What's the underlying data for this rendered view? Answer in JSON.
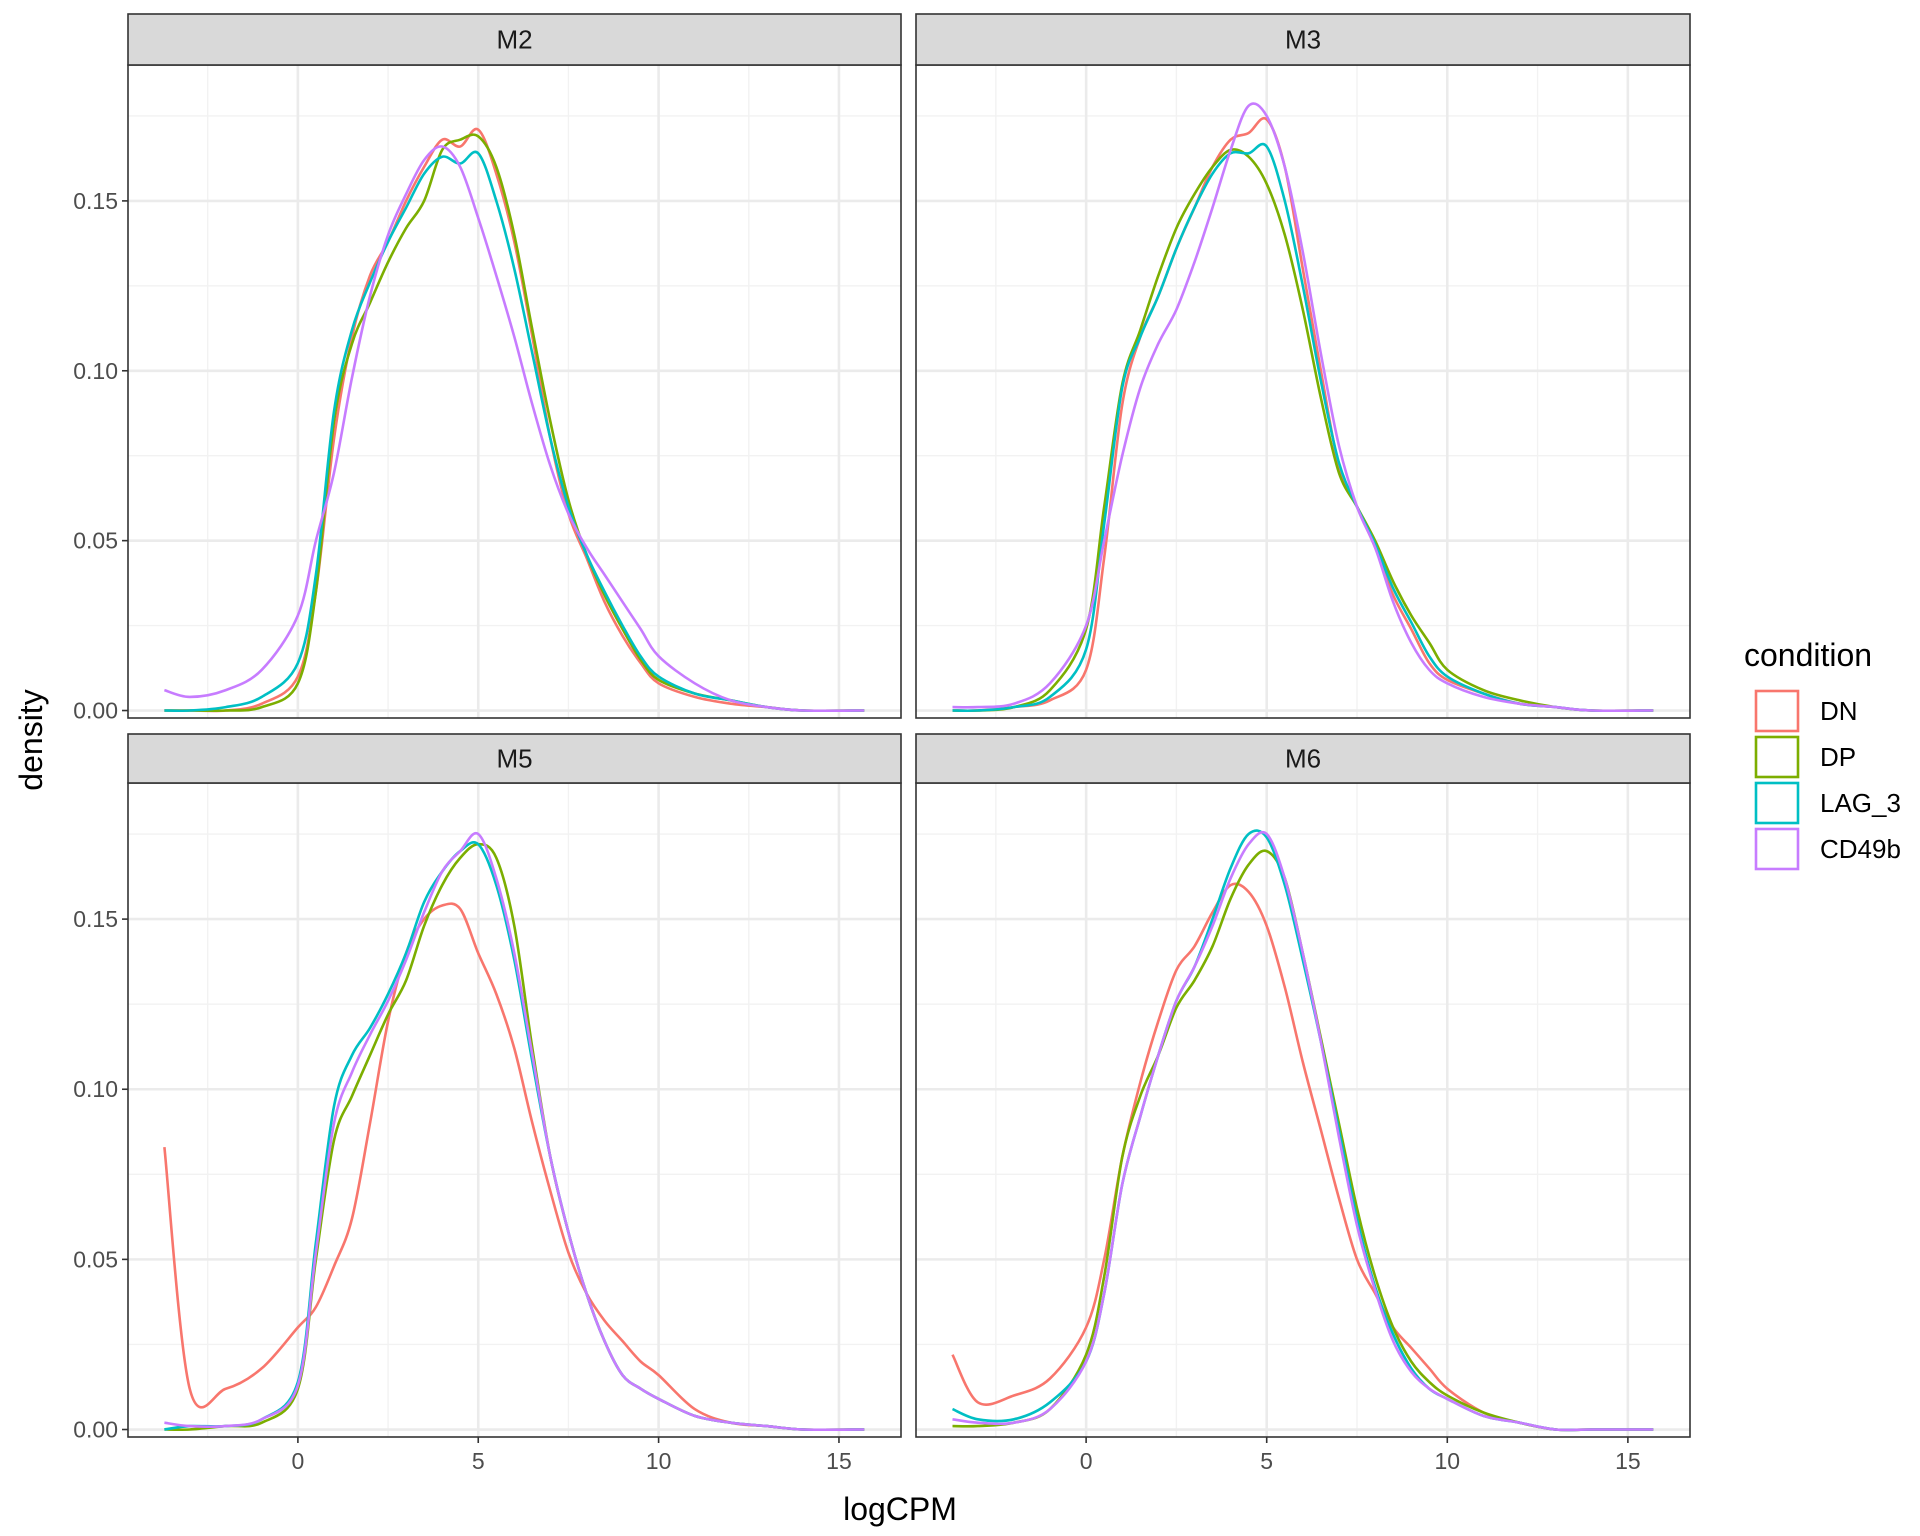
{
  "chart_data": {
    "type": "line",
    "subtype": "density (faceted)",
    "title": "",
    "xlabel": "logCPM",
    "ylabel": "density",
    "xlim": [
      -4.71,
      16.72
    ],
    "ylim": [
      -0.0022,
      0.19
    ],
    "x_ticks": [
      0,
      5,
      10,
      15
    ],
    "x_tick_labels": [
      "0",
      "5",
      "10",
      "15"
    ],
    "y_ticks": [
      0.0,
      0.05,
      0.1,
      0.15
    ],
    "y_tick_labels": [
      "0.00",
      "0.05",
      "0.10",
      "0.15"
    ],
    "grid": true,
    "legend": {
      "title": "condition",
      "position": "right",
      "entries": [
        {
          "label": "DN",
          "color": "#F8766D"
        },
        {
          "label": "DP",
          "color": "#7CAE00"
        },
        {
          "label": "LAG_3",
          "color": "#00BFC4"
        },
        {
          "label": "CD49b",
          "color": "#C77CFF"
        }
      ]
    },
    "x": [
      -3.7,
      -3,
      -2,
      -1,
      0,
      0.5,
      1,
      1.5,
      2,
      2.5,
      3,
      3.5,
      4,
      4.5,
      5,
      5.5,
      6,
      6.5,
      7,
      7.5,
      8,
      8.5,
      9,
      9.5,
      10,
      11,
      12,
      13,
      14,
      15.7
    ],
    "panels": [
      {
        "facet": "M2",
        "series": [
          {
            "name": "DN",
            "values": [
              0.0,
              0.0,
              0.0,
              0.002,
              0.01,
              0.035,
              0.08,
              0.11,
              0.128,
              0.138,
              0.15,
              0.16,
              0.168,
              0.166,
              0.171,
              0.158,
              0.138,
              0.11,
              0.08,
              0.058,
              0.045,
              0.032,
              0.022,
              0.014,
              0.008,
              0.004,
              0.002,
              0.001,
              0.0,
              0.0
            ]
          },
          {
            "name": "DP",
            "values": [
              0.0,
              0.0,
              0.0,
              0.001,
              0.008,
              0.035,
              0.085,
              0.108,
              0.12,
              0.132,
              0.142,
              0.15,
              0.165,
              0.168,
              0.169,
              0.16,
              0.14,
              0.112,
              0.085,
              0.062,
              0.046,
              0.034,
              0.024,
              0.015,
              0.009,
              0.005,
              0.003,
              0.001,
              0.0,
              0.0
            ]
          },
          {
            "name": "LAG_3",
            "values": [
              0.0,
              0.0,
              0.001,
              0.004,
              0.014,
              0.04,
              0.088,
              0.112,
              0.126,
              0.138,
              0.148,
              0.158,
              0.163,
              0.161,
              0.164,
              0.15,
              0.13,
              0.105,
              0.08,
              0.06,
              0.046,
              0.035,
              0.025,
              0.016,
              0.01,
              0.005,
              0.003,
              0.001,
              0.0,
              0.0
            ]
          },
          {
            "name": "CD49b",
            "values": [
              0.006,
              0.004,
              0.006,
              0.012,
              0.028,
              0.05,
              0.07,
              0.098,
              0.122,
              0.14,
              0.152,
              0.162,
              0.166,
              0.16,
              0.145,
              0.128,
              0.11,
              0.09,
              0.072,
              0.058,
              0.048,
              0.04,
              0.032,
              0.024,
              0.016,
              0.008,
              0.003,
              0.001,
              0.0,
              0.0
            ]
          }
        ]
      },
      {
        "facet": "M3",
        "series": [
          {
            "name": "DN",
            "values": [
              0.0,
              0.0,
              0.001,
              0.003,
              0.012,
              0.045,
              0.09,
              0.11,
              0.122,
              0.136,
              0.148,
              0.16,
              0.168,
              0.17,
              0.174,
              0.16,
              0.13,
              0.1,
              0.072,
              0.06,
              0.048,
              0.034,
              0.024,
              0.014,
              0.009,
              0.005,
              0.002,
              0.001,
              0.0,
              0.0
            ]
          },
          {
            "name": "DP",
            "values": [
              0.0,
              0.0,
              0.001,
              0.006,
              0.024,
              0.06,
              0.096,
              0.112,
              0.128,
              0.142,
              0.152,
              0.16,
              0.165,
              0.163,
              0.155,
              0.14,
              0.118,
              0.092,
              0.07,
              0.06,
              0.05,
              0.038,
              0.028,
              0.02,
              0.012,
              0.006,
              0.003,
              0.001,
              0.0,
              0.0
            ]
          },
          {
            "name": "LAG_3",
            "values": [
              0.0,
              0.0,
              0.001,
              0.004,
              0.018,
              0.055,
              0.095,
              0.11,
              0.122,
              0.136,
              0.148,
              0.158,
              0.164,
              0.164,
              0.166,
              0.15,
              0.125,
              0.097,
              0.073,
              0.06,
              0.049,
              0.036,
              0.026,
              0.016,
              0.01,
              0.005,
              0.002,
              0.001,
              0.0,
              0.0
            ]
          },
          {
            "name": "CD49b",
            "values": [
              0.001,
              0.001,
              0.002,
              0.008,
              0.025,
              0.05,
              0.075,
              0.095,
              0.108,
              0.118,
              0.132,
              0.148,
              0.165,
              0.178,
              0.175,
              0.16,
              0.135,
              0.105,
              0.078,
              0.06,
              0.048,
              0.032,
              0.02,
              0.012,
              0.008,
              0.004,
              0.002,
              0.001,
              0.0,
              0.0
            ]
          }
        ]
      },
      {
        "facet": "M5",
        "series": [
          {
            "name": "DN",
            "values": [
              0.083,
              0.012,
              0.012,
              0.018,
              0.03,
              0.036,
              0.048,
              0.062,
              0.09,
              0.12,
              0.14,
              0.15,
              0.154,
              0.153,
              0.14,
              0.128,
              0.112,
              0.09,
              0.07,
              0.052,
              0.04,
              0.032,
              0.026,
              0.02,
              0.016,
              0.006,
              0.002,
              0.001,
              0.0,
              0.0
            ]
          },
          {
            "name": "DP",
            "values": [
              0.0,
              0.0,
              0.001,
              0.002,
              0.012,
              0.05,
              0.085,
              0.098,
              0.11,
              0.122,
              0.132,
              0.148,
              0.16,
              0.168,
              0.172,
              0.168,
              0.148,
              0.112,
              0.08,
              0.058,
              0.04,
              0.026,
              0.016,
              0.012,
              0.009,
              0.004,
              0.002,
              0.001,
              0.0,
              0.0
            ]
          },
          {
            "name": "LAG_3",
            "values": [
              0.0,
              0.001,
              0.001,
              0.003,
              0.014,
              0.055,
              0.095,
              0.11,
              0.118,
              0.128,
              0.14,
              0.155,
              0.164,
              0.17,
              0.172,
              0.16,
              0.138,
              0.108,
              0.08,
              0.058,
              0.04,
              0.026,
              0.016,
              0.012,
              0.009,
              0.004,
              0.002,
              0.001,
              0.0,
              0.0
            ]
          },
          {
            "name": "CD49b",
            "values": [
              0.002,
              0.001,
              0.001,
              0.003,
              0.013,
              0.052,
              0.09,
              0.105,
              0.116,
              0.126,
              0.138,
              0.152,
              0.164,
              0.17,
              0.175,
              0.162,
              0.14,
              0.11,
              0.08,
              0.058,
              0.04,
              0.026,
              0.016,
              0.012,
              0.009,
              0.004,
              0.002,
              0.001,
              0.0,
              0.0
            ]
          }
        ]
      },
      {
        "facet": "M6",
        "series": [
          {
            "name": "DN",
            "values": [
              0.022,
              0.008,
              0.01,
              0.015,
              0.03,
              0.05,
              0.08,
              0.102,
              0.12,
              0.135,
              0.142,
              0.152,
              0.16,
              0.158,
              0.148,
              0.13,
              0.108,
              0.088,
              0.068,
              0.05,
              0.04,
              0.03,
              0.024,
              0.018,
              0.012,
              0.005,
              0.002,
              0.0,
              0.0,
              0.0
            ]
          },
          {
            "name": "DP",
            "values": [
              0.001,
              0.001,
              0.002,
              0.006,
              0.022,
              0.045,
              0.08,
              0.098,
              0.11,
              0.124,
              0.132,
              0.142,
              0.156,
              0.166,
              0.17,
              0.162,
              0.14,
              0.115,
              0.09,
              0.065,
              0.045,
              0.03,
              0.02,
              0.014,
              0.01,
              0.005,
              0.002,
              0.0,
              0.0,
              0.0
            ]
          },
          {
            "name": "LAG_3",
            "values": [
              0.006,
              0.003,
              0.003,
              0.008,
              0.02,
              0.04,
              0.072,
              0.092,
              0.11,
              0.126,
              0.136,
              0.15,
              0.165,
              0.175,
              0.174,
              0.16,
              0.138,
              0.114,
              0.088,
              0.062,
              0.042,
              0.028,
              0.018,
              0.012,
              0.009,
              0.004,
              0.002,
              0.0,
              0.0,
              0.0
            ]
          },
          {
            "name": "CD49b",
            "values": [
              0.003,
              0.002,
              0.002,
              0.006,
              0.02,
              0.04,
              0.072,
              0.092,
              0.11,
              0.126,
              0.136,
              0.148,
              0.162,
              0.172,
              0.175,
              0.162,
              0.14,
              0.114,
              0.086,
              0.06,
              0.041,
              0.026,
              0.017,
              0.012,
              0.009,
              0.004,
              0.002,
              0.0,
              0.0,
              0.0
            ]
          }
        ]
      }
    ]
  },
  "figure": {
    "panel_titles": [
      "M2",
      "M3",
      "M5",
      "M6"
    ],
    "x_axis_title": "logCPM",
    "y_axis_title": "density",
    "legend_title": "condition",
    "legend_labels": [
      "DN",
      "DP",
      "LAG_3",
      "CD49b"
    ],
    "colors": {
      "DN": "#F8766D",
      "DP": "#7CAE00",
      "LAG_3": "#00BFC4",
      "CD49b": "#C77CFF",
      "strip_bg": "#D9D9D9",
      "panel_border": "#333333",
      "grid_major": "#EBEBEB",
      "grid_minor": "#F2F2F2",
      "tick_text": "#4D4D4D"
    }
  }
}
